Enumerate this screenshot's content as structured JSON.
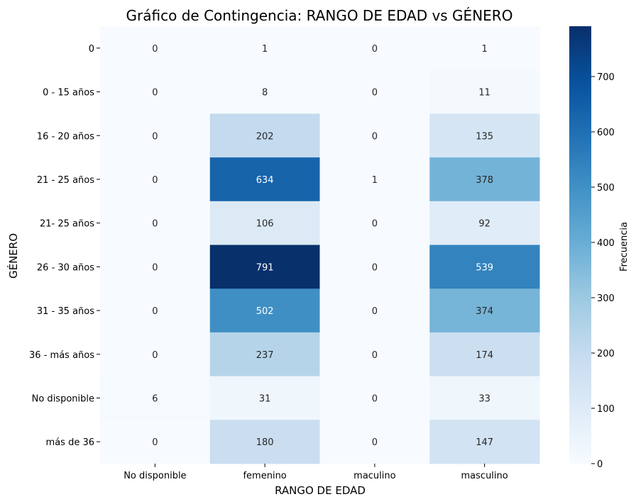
{
  "chart_data": {
    "type": "heatmap",
    "title": "Gráfico de Contingencia: RANGO DE EDAD vs GÉNERO",
    "xlabel": "RANGO DE EDAD",
    "ylabel": "GÉNERO",
    "colorbar_label": "Frecuencia",
    "colormap": "Blues",
    "colormap_stops": [
      "#f7fbff",
      "#deebf7",
      "#c6dbef",
      "#9ecae1",
      "#6baed6",
      "#4292c6",
      "#2171b5",
      "#08519c",
      "#08306b"
    ],
    "x_categories": [
      "No disponible",
      "femenino",
      "maculino",
      "masculino"
    ],
    "y_categories": [
      "0",
      "0 - 15 años",
      "16 - 20 años",
      "21 - 25 años",
      "21- 25 años",
      "26 - 30 años",
      "31 - 35 años",
      "36 - más años",
      "No disponible",
      "más de 36"
    ],
    "values": [
      [
        0,
        1,
        0,
        1
      ],
      [
        0,
        8,
        0,
        11
      ],
      [
        0,
        202,
        0,
        135
      ],
      [
        0,
        634,
        1,
        378
      ],
      [
        0,
        106,
        0,
        92
      ],
      [
        0,
        791,
        0,
        539
      ],
      [
        0,
        502,
        0,
        374
      ],
      [
        0,
        237,
        0,
        174
      ],
      [
        6,
        31,
        0,
        33
      ],
      [
        0,
        180,
        0,
        147
      ]
    ],
    "vmin": 0,
    "vmax": 791,
    "colorbar_ticks": [
      "0",
      "100",
      "200",
      "300",
      "400",
      "500",
      "600",
      "700"
    ]
  }
}
